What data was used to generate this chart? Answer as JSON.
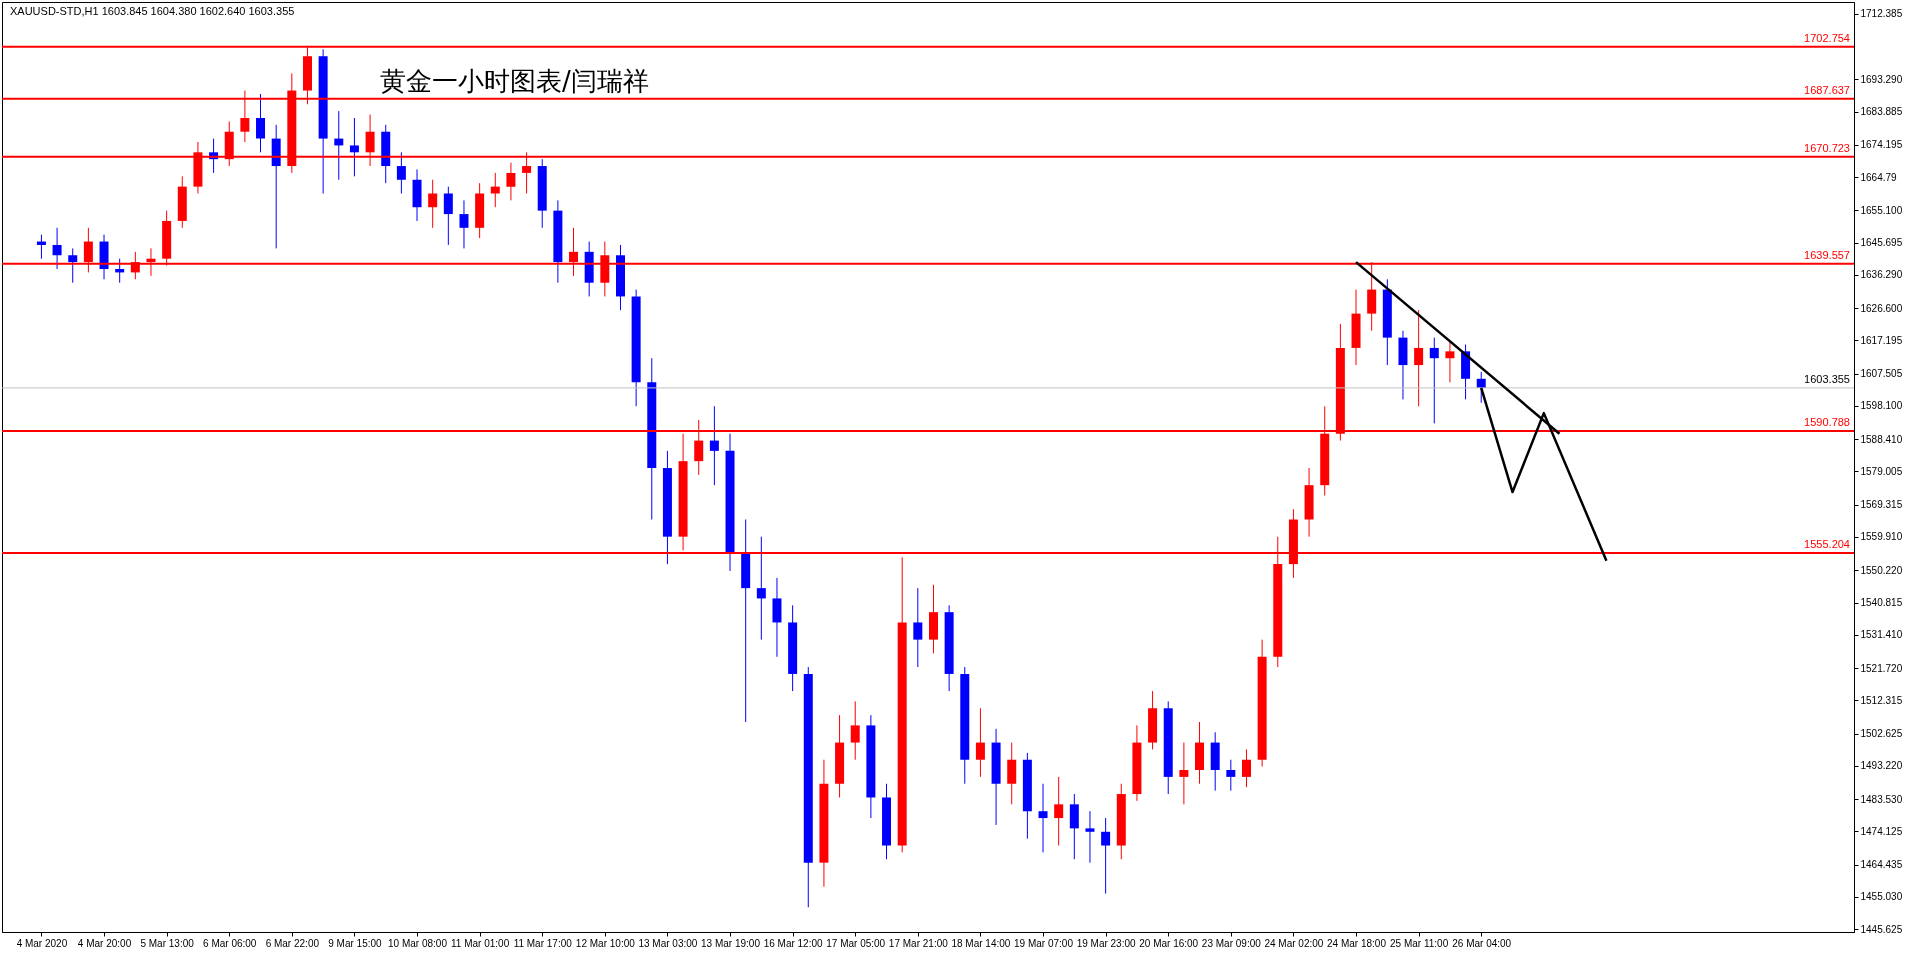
{
  "chart_data": {
    "type": "candlestick",
    "title": "黄金一小时图表/闫瑞祥",
    "annotations": [
      "XAUUSD-STD,H1  1603.845 1604.380 1602.640 1603.355"
    ],
    "categories": [
      "4 Mar 2020",
      null,
      null,
      null,
      "4 Mar 20:00",
      null,
      null,
      null,
      "5 Mar 13:00",
      null,
      null,
      null,
      "6 Mar 06:00",
      null,
      null,
      null,
      "6 Mar 22:00",
      null,
      null,
      null,
      "9 Mar 15:00",
      null,
      null,
      null,
      "10 Mar 08:00",
      null,
      null,
      null,
      "11 Mar 01:00",
      null,
      null,
      null,
      "11 Mar 17:00",
      null,
      null,
      null,
      "12 Mar 10:00",
      null,
      null,
      null,
      "13 Mar 03:00",
      null,
      null,
      null,
      "13 Mar 19:00",
      null,
      null,
      null,
      "16 Mar 12:00",
      null,
      null,
      null,
      "17 Mar 05:00",
      null,
      null,
      null,
      "17 Mar 21:00",
      null,
      null,
      null,
      "18 Mar 14:00",
      null,
      null,
      null,
      "19 Mar 07:00",
      null,
      null,
      null,
      "19 Mar 23:00",
      null,
      null,
      null,
      "20 Mar 16:00",
      null,
      null,
      null,
      "23 Mar 09:00",
      null,
      null,
      null,
      "24 Mar 02:00",
      null,
      null,
      null,
      "24 Mar 18:00",
      null,
      null,
      null,
      "25 Mar 11:00",
      null,
      null,
      null,
      "26 Mar 04:00",
      null,
      null,
      null,
      null,
      null,
      null,
      null,
      null,
      null,
      null,
      null,
      null,
      null,
      null,
      null,
      null,
      null,
      null,
      null,
      null,
      null,
      null,
      null
    ],
    "ohlc": [
      [
        1646,
        1648,
        1641,
        1645
      ],
      [
        1645,
        1650,
        1638,
        1642
      ],
      [
        1642,
        1644,
        1634,
        1640
      ],
      [
        1640,
        1650,
        1637,
        1646
      ],
      [
        1646,
        1648,
        1635,
        1638
      ],
      [
        1638,
        1641,
        1634,
        1637
      ],
      [
        1637,
        1643,
        1635,
        1640
      ],
      [
        1640,
        1644,
        1636,
        1641
      ],
      [
        1641,
        1655,
        1639,
        1652
      ],
      [
        1652,
        1665,
        1650,
        1662
      ],
      [
        1662,
        1675,
        1660,
        1672
      ],
      [
        1672,
        1676,
        1666,
        1670
      ],
      [
        1670,
        1681,
        1668,
        1678
      ],
      [
        1678,
        1690,
        1675,
        1682
      ],
      [
        1682,
        1689,
        1672,
        1676
      ],
      [
        1676,
        1680,
        1644,
        1668
      ],
      [
        1668,
        1695,
        1666,
        1690
      ],
      [
        1690,
        1703,
        1686,
        1700
      ],
      [
        1700,
        1702,
        1660,
        1676
      ],
      [
        1676,
        1684,
        1664,
        1674
      ],
      [
        1674,
        1682,
        1665,
        1672
      ],
      [
        1672,
        1683,
        1668,
        1678
      ],
      [
        1678,
        1680,
        1663,
        1668
      ],
      [
        1668,
        1672,
        1660,
        1664
      ],
      [
        1664,
        1667,
        1652,
        1656
      ],
      [
        1656,
        1664,
        1650,
        1660
      ],
      [
        1660,
        1662,
        1645,
        1654
      ],
      [
        1654,
        1658,
        1644,
        1650
      ],
      [
        1650,
        1663,
        1647,
        1660
      ],
      [
        1660,
        1666,
        1656,
        1662
      ],
      [
        1662,
        1669,
        1658,
        1666
      ],
      [
        1666,
        1672,
        1660,
        1668
      ],
      [
        1668,
        1670,
        1650,
        1655
      ],
      [
        1655,
        1658,
        1634,
        1640
      ],
      [
        1640,
        1650,
        1636,
        1643
      ],
      [
        1643,
        1646,
        1630,
        1634
      ],
      [
        1634,
        1646,
        1630,
        1642
      ],
      [
        1642,
        1645,
        1626,
        1630
      ],
      [
        1630,
        1632,
        1598,
        1605
      ],
      [
        1605,
        1612,
        1565,
        1580
      ],
      [
        1580,
        1585,
        1552,
        1560
      ],
      [
        1560,
        1590,
        1556,
        1582
      ],
      [
        1582,
        1594,
        1578,
        1588
      ],
      [
        1588,
        1598,
        1575,
        1585
      ],
      [
        1585,
        1590,
        1550,
        1555
      ],
      [
        1555,
        1565,
        1506,
        1545
      ],
      [
        1545,
        1560,
        1530,
        1542
      ],
      [
        1542,
        1548,
        1525,
        1535
      ],
      [
        1535,
        1540,
        1515,
        1520
      ],
      [
        1520,
        1522,
        1452,
        1465
      ],
      [
        1465,
        1495,
        1458,
        1488
      ],
      [
        1488,
        1508,
        1484,
        1500
      ],
      [
        1500,
        1512,
        1495,
        1505
      ],
      [
        1505,
        1508,
        1478,
        1484
      ],
      [
        1484,
        1488,
        1466,
        1470
      ],
      [
        1470,
        1554,
        1468,
        1535
      ],
      [
        1535,
        1545,
        1522,
        1530
      ],
      [
        1530,
        1546,
        1526,
        1538
      ],
      [
        1538,
        1540,
        1515,
        1520
      ],
      [
        1520,
        1522,
        1488,
        1495
      ],
      [
        1495,
        1510,
        1490,
        1500
      ],
      [
        1500,
        1504,
        1476,
        1488
      ],
      [
        1488,
        1500,
        1482,
        1495
      ],
      [
        1495,
        1497,
        1472,
        1480
      ],
      [
        1480,
        1488,
        1468,
        1478
      ],
      [
        1478,
        1490,
        1470,
        1482
      ],
      [
        1482,
        1485,
        1466,
        1475
      ],
      [
        1475,
        1480,
        1465,
        1474
      ],
      [
        1474,
        1478,
        1456,
        1470
      ],
      [
        1470,
        1488,
        1466,
        1485
      ],
      [
        1485,
        1505,
        1483,
        1500
      ],
      [
        1500,
        1515,
        1498,
        1510
      ],
      [
        1510,
        1512,
        1485,
        1490
      ],
      [
        1490,
        1500,
        1482,
        1492
      ],
      [
        1492,
        1506,
        1488,
        1500
      ],
      [
        1500,
        1503,
        1486,
        1492
      ],
      [
        1492,
        1495,
        1486,
        1490
      ],
      [
        1490,
        1498,
        1487,
        1495
      ],
      [
        1495,
        1530,
        1493,
        1525
      ],
      [
        1525,
        1560,
        1522,
        1552
      ],
      [
        1552,
        1568,
        1548,
        1565
      ],
      [
        1565,
        1580,
        1560,
        1575
      ],
      [
        1575,
        1598,
        1572,
        1590
      ],
      [
        1590,
        1622,
        1588,
        1615
      ],
      [
        1615,
        1632,
        1610,
        1625
      ],
      [
        1625,
        1640,
        1620,
        1632
      ],
      [
        1632,
        1635,
        1610,
        1618
      ],
      [
        1618,
        1620,
        1600,
        1610
      ],
      [
        1610,
        1626,
        1598,
        1615
      ],
      [
        1615,
        1618,
        1593,
        1612
      ],
      [
        1612,
        1617,
        1605,
        1614
      ],
      [
        1614,
        1616,
        1600,
        1606
      ],
      [
        1606,
        1608,
        1599,
        1603.355
      ],
      null,
      null,
      null,
      null,
      null,
      null,
      null,
      null,
      null,
      null,
      null,
      null,
      null,
      null,
      null,
      null,
      null,
      null,
      null,
      null,
      null,
      null,
      null
    ],
    "colors": [
      "#0000ff",
      "#0000ff",
      "#0000ff",
      "#ff0000",
      "#0000ff",
      "#0000ff",
      "#ff0000",
      "#ff0000",
      "#ff0000",
      "#ff0000",
      "#ff0000",
      "#0000ff",
      "#ff0000",
      "#ff0000",
      "#0000ff",
      "#0000ff",
      "#ff0000",
      "#ff0000",
      "#0000ff",
      "#0000ff",
      "#0000ff",
      "#ff0000",
      "#0000ff",
      "#0000ff",
      "#0000ff",
      "#ff0000",
      "#0000ff",
      "#0000ff",
      "#ff0000",
      "#ff0000",
      "#ff0000",
      "#ff0000",
      "#0000ff",
      "#0000ff",
      "#ff0000",
      "#0000ff",
      "#ff0000",
      "#0000ff",
      "#0000ff",
      "#0000ff",
      "#0000ff",
      "#ff0000",
      "#ff0000",
      "#0000ff",
      "#0000ff",
      "#0000ff",
      "#0000ff",
      "#0000ff",
      "#0000ff",
      "#0000ff",
      "#ff0000",
      "#ff0000",
      "#ff0000",
      "#0000ff",
      "#0000ff",
      "#ff0000",
      "#0000ff",
      "#ff0000",
      "#0000ff",
      "#0000ff",
      "#ff0000",
      "#0000ff",
      "#ff0000",
      "#0000ff",
      "#0000ff",
      "#ff0000",
      "#0000ff",
      "#0000ff",
      "#0000ff",
      "#ff0000",
      "#ff0000",
      "#ff0000",
      "#0000ff",
      "#ff0000",
      "#ff0000",
      "#0000ff",
      "#0000ff",
      "#ff0000",
      "#ff0000",
      "#ff0000",
      "#ff0000",
      "#ff0000",
      "#ff0000",
      "#ff0000",
      "#ff0000",
      "#ff0000",
      "#0000ff",
      "#0000ff",
      "#ff0000",
      "#0000ff",
      "#ff0000",
      "#0000ff",
      "#0000ff",
      null,
      null,
      null,
      null,
      null,
      null,
      null,
      null,
      null,
      null,
      null,
      null,
      null,
      null,
      null,
      null,
      null,
      null,
      null,
      null,
      null,
      null,
      null
    ],
    "series": [
      {
        "type": "line",
        "color": "#000000",
        "values": [
          null,
          null,
          null,
          null,
          null,
          null,
          null,
          null,
          null,
          null,
          null,
          null,
          null,
          null,
          null,
          null,
          null,
          null,
          null,
          null,
          null,
          null,
          null,
          null,
          null,
          null,
          null,
          null,
          null,
          null,
          null,
          null,
          null,
          null,
          null,
          null,
          null,
          null,
          null,
          null,
          null,
          null,
          null,
          null,
          null,
          null,
          null,
          null,
          null,
          null,
          null,
          null,
          null,
          null,
          null,
          null,
          null,
          null,
          null,
          null,
          null,
          null,
          null,
          null,
          null,
          null,
          null,
          null,
          null,
          null,
          null,
          null,
          null,
          null,
          null,
          null,
          null,
          null,
          null,
          null,
          null,
          null,
          null,
          null,
          1640,
          null,
          null,
          null,
          null,
          null,
          null,
          null,
          null,
          null,
          null,
          null,
          null,
          1590,
          null,
          null,
          null,
          null,
          null,
          null,
          null,
          null,
          null,
          null,
          null,
          null,
          null,
          null,
          null,
          null,
          null,
          null
        ]
      },
      {
        "type": "line",
        "color": "#000000",
        "values": [
          null,
          null,
          null,
          null,
          null,
          null,
          null,
          null,
          null,
          null,
          null,
          null,
          null,
          null,
          null,
          null,
          null,
          null,
          null,
          null,
          null,
          null,
          null,
          null,
          null,
          null,
          null,
          null,
          null,
          null,
          null,
          null,
          null,
          null,
          null,
          null,
          null,
          null,
          null,
          null,
          null,
          null,
          null,
          null,
          null,
          null,
          null,
          null,
          null,
          null,
          null,
          null,
          null,
          null,
          null,
          null,
          null,
          null,
          null,
          null,
          null,
          null,
          null,
          null,
          null,
          null,
          null,
          null,
          null,
          null,
          null,
          null,
          null,
          null,
          null,
          null,
          null,
          null,
          null,
          null,
          null,
          null,
          null,
          null,
          null,
          null,
          null,
          null,
          null,
          null,
          null,
          null,
          1603.355,
          null,
          1573,
          null,
          1596,
          null,
          null,
          null,
          1553,
          null,
          null,
          null,
          null,
          null,
          null,
          null,
          null,
          null,
          null,
          null,
          null,
          null,
          null,
          null
        ]
      }
    ],
    "ylim": [
      1444.8,
      1715.8
    ],
    "yticks": [
      1712.385,
      {
        "value": 1693.29,
        "label": "1693.290"
      },
      1683.885,
      1674.195,
      1664.79,
      {
        "value": 1655.1,
        "label": "1655.100"
      },
      1645.695,
      {
        "value": 1636.29,
        "label": "1636.290"
      },
      {
        "value": 1626.6,
        "label": "1626.600"
      },
      1617.195,
      1607.505,
      {
        "value": 1598.1,
        "label": "1598.100"
      },
      {
        "value": 1588.41,
        "label": "1588.410"
      },
      1579.005,
      1569.315,
      {
        "value": 1559.91,
        "label": "1559.910"
      },
      {
        "value": 1550.22,
        "label": "1550.220"
      },
      1540.815,
      {
        "value": 1531.41,
        "label": "1531.410"
      },
      {
        "value": 1521.72,
        "label": "1521.720"
      },
      1512.315,
      1502.625,
      {
        "value": 1493.22,
        "label": "1493.220"
      },
      {
        "value": 1483.53,
        "label": "1483.530"
      },
      1474.125,
      1464.435,
      {
        "value": 1455.03,
        "label": "1455.030"
      },
      1445.625
    ],
    "ref_lines": [
      {
        "axis": "y",
        "value": 1702.754,
        "label": "1702.754",
        "color": "#ff0000"
      },
      {
        "axis": "y",
        "value": 1687.637,
        "label": "1687.637",
        "color": "#ff0000"
      },
      {
        "axis": "y",
        "value": 1670.723,
        "label": "1670.723",
        "color": "#ff0000"
      },
      {
        "axis": "y",
        "value": 1639.557,
        "label": "1639.557",
        "color": "#ff0000"
      },
      {
        "axis": "y",
        "value": 1603.355,
        "label": "1603.355",
        "color": "#c0c0c0"
      },
      {
        "axis": "y",
        "value": 1590.788,
        "label": "1590.788",
        "color": "#ff0000"
      },
      {
        "axis": "y",
        "value": 1555.204,
        "label": "1555.204",
        "color": "#ff0000"
      }
    ],
    "grid": false
  }
}
